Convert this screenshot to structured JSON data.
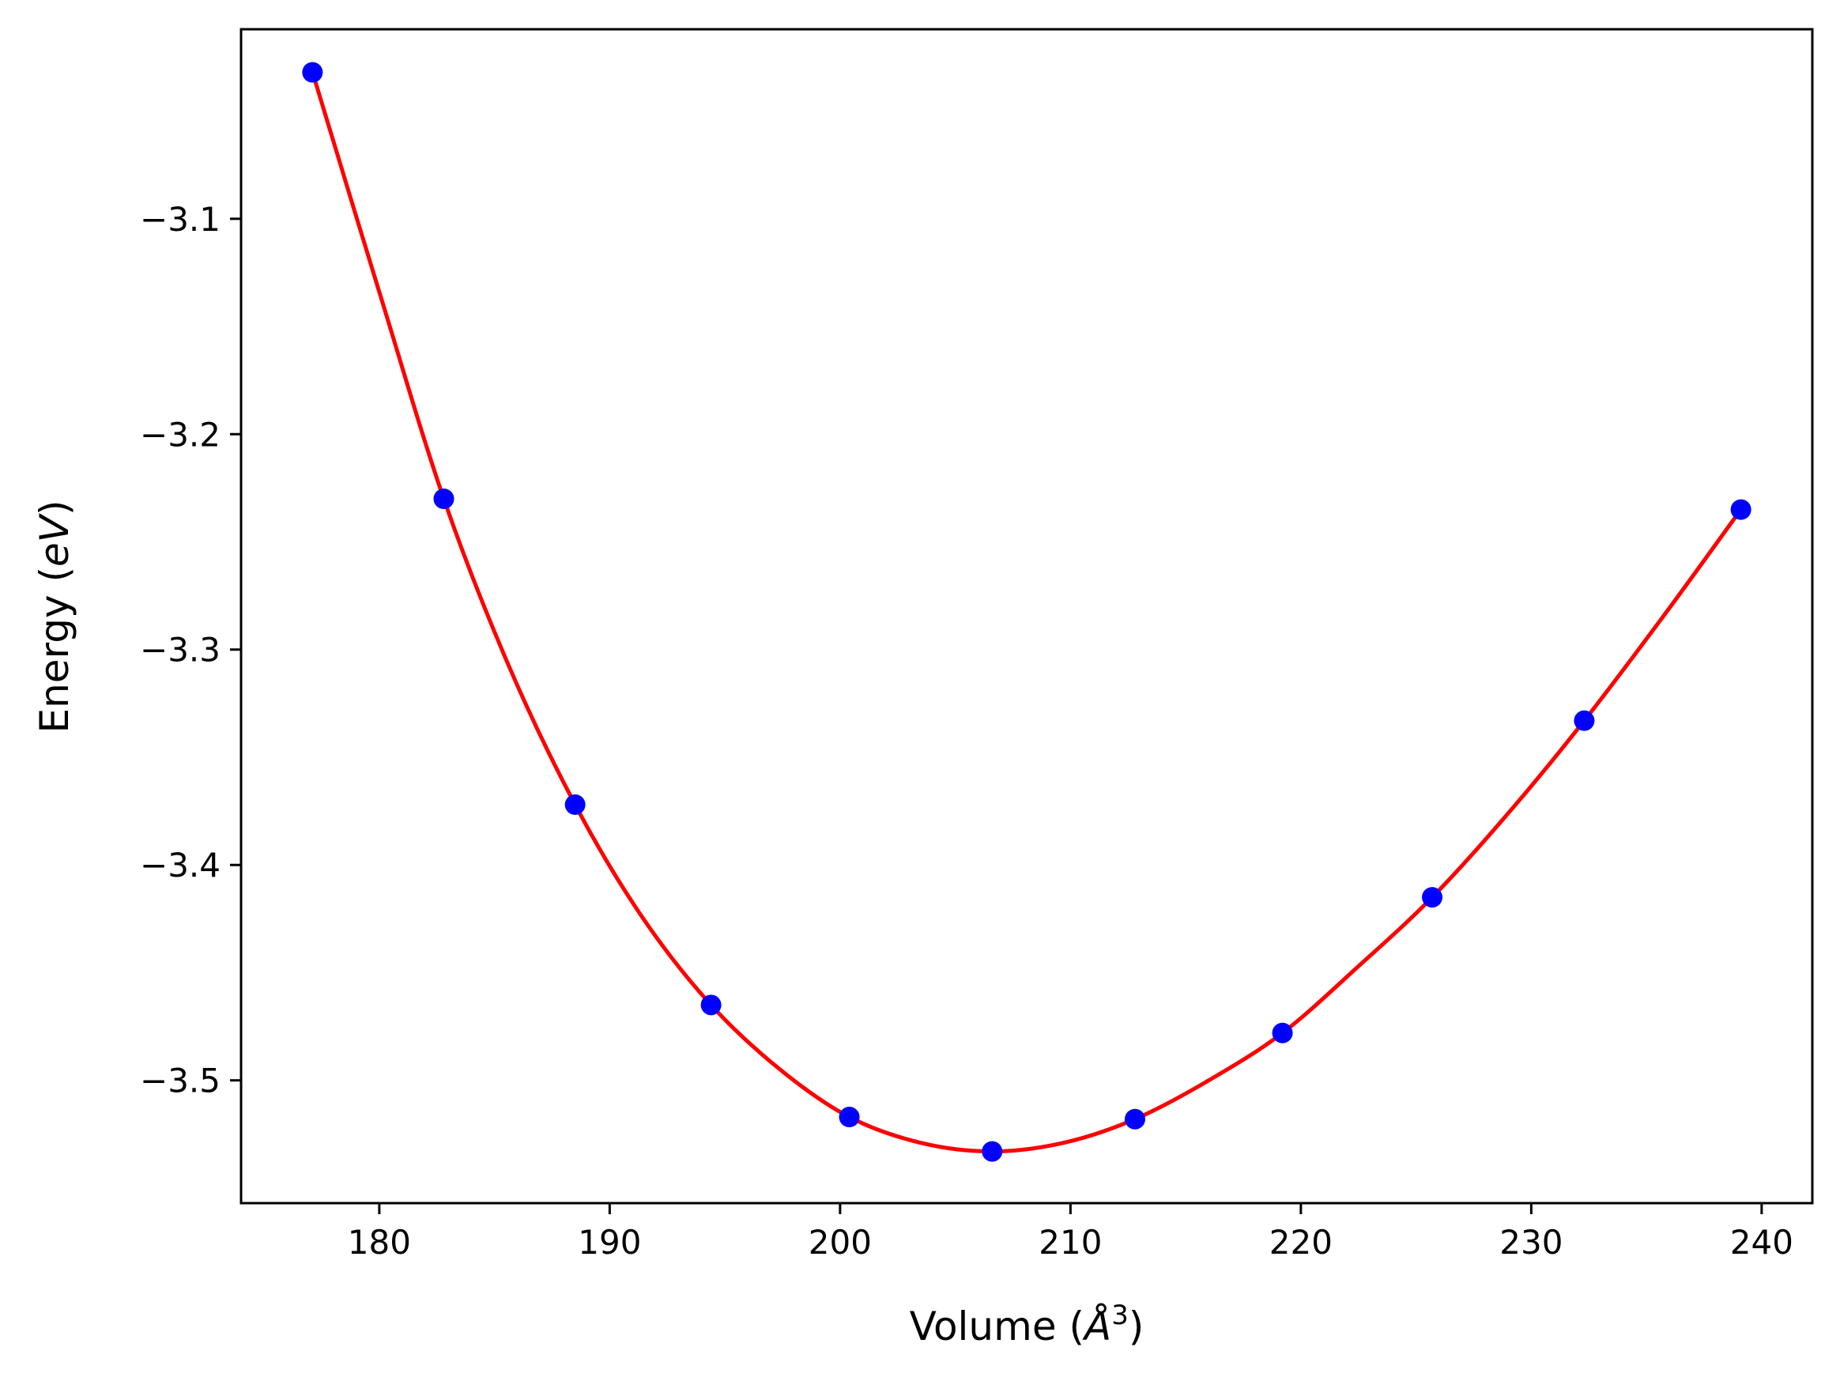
{
  "chart_data": {
    "type": "scatter",
    "title": "",
    "xlabel": "Volume (Å³)",
    "ylabel": "Energy (eV)",
    "xlabel_parts": {
      "prefix": "Volume (",
      "unit": "Å",
      "power": "3",
      "suffix": ")"
    },
    "ylabel_parts": {
      "prefix": "Energy (",
      "unit": "eV",
      "suffix": ")"
    },
    "xlim": [
      174,
      242.2
    ],
    "ylim": [
      -3.557,
      -3.012
    ],
    "xticks": [
      180,
      190,
      200,
      210,
      220,
      230,
      240
    ],
    "xtick_labels": [
      "180",
      "190",
      "200",
      "210",
      "220",
      "230",
      "240"
    ],
    "yticks": [
      -3.1,
      -3.2,
      -3.3,
      -3.4,
      -3.5
    ],
    "ytick_labels": [
      "−3.1",
      "−3.2",
      "−3.3",
      "−3.4",
      "−3.5"
    ],
    "grid": false,
    "series": [
      {
        "kind": "points",
        "color": "#0000ff",
        "x": [
          177.1,
          182.8,
          188.5,
          194.4,
          200.4,
          206.6,
          212.8,
          219.2,
          225.7,
          232.3,
          239.1
        ],
        "y": [
          -3.032,
          -3.23,
          -3.372,
          -3.465,
          -3.517,
          -3.533,
          -3.518,
          -3.478,
          -3.415,
          -3.333,
          -3.235
        ]
      },
      {
        "kind": "fit-curve",
        "color": "#ff0000",
        "x": [
          177.1,
          180.0,
          182.8,
          185.6,
          188.5,
          191.4,
          194.4,
          197.4,
          200.4,
          203.5,
          206.6,
          209.7,
          212.8,
          216.0,
          219.2,
          222.4,
          225.7,
          229.0,
          232.3,
          235.7,
          239.1
        ],
        "y": [
          -3.032,
          -3.134,
          -3.23,
          -3.307,
          -3.372,
          -3.424,
          -3.465,
          -3.495,
          -3.517,
          -3.529,
          -3.533,
          -3.529,
          -3.518,
          -3.5,
          -3.478,
          -3.448,
          -3.415,
          -3.376,
          -3.333,
          -3.285,
          -3.235
        ]
      }
    ]
  }
}
